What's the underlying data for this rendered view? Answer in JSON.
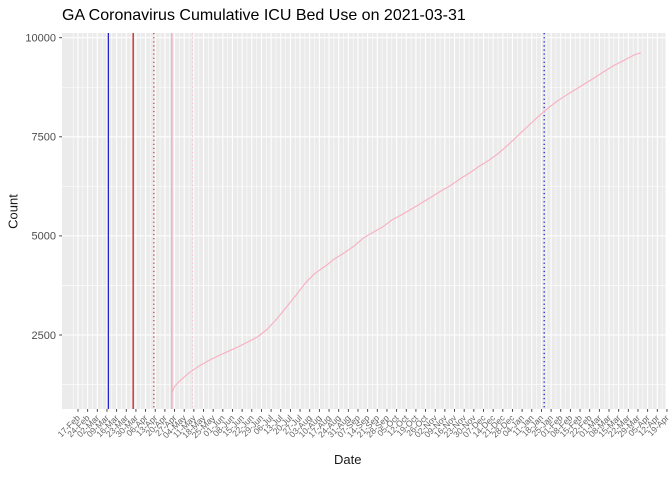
{
  "chart_data": {
    "type": "line",
    "title": "GA Coronavirus Cumulative ICU Bed Use on 2021-03-31",
    "xlabel": "Date",
    "ylabel": "Count",
    "legend": "none",
    "grid": true,
    "panel_bg": "#ebebeb",
    "grid_color": "#ffffff",
    "axis_text_color_y": "#4d4d4d",
    "axis_text_color_x": "#666666",
    "y_ticks": [
      2500,
      5000,
      7500,
      10000
    ],
    "y_minor_ticks": [
      1250,
      3750,
      6250,
      8750
    ],
    "ylim": [
      630,
      10120
    ],
    "x_ticks": [
      [
        "2020-02-17",
        "17-Feb"
      ],
      [
        "2020-02-24",
        "24-Feb"
      ],
      [
        "2020-03-02",
        "02-Mar"
      ],
      [
        "2020-03-09",
        "09-Mar"
      ],
      [
        "2020-03-16",
        "16-Mar"
      ],
      [
        "2020-03-23",
        "23-Mar"
      ],
      [
        "2020-03-30",
        "30-Mar"
      ],
      [
        "2020-04-06",
        "06-Apr"
      ],
      [
        "2020-04-13",
        "13-Apr"
      ],
      [
        "2020-04-20",
        "20-Apr"
      ],
      [
        "2020-04-27",
        "27-Apr"
      ],
      [
        "2020-05-04",
        "04-May"
      ],
      [
        "2020-05-11",
        "11-May"
      ],
      [
        "2020-05-18",
        "18-May"
      ],
      [
        "2020-05-25",
        "25-May"
      ],
      [
        "2020-06-01",
        "01-Jun"
      ],
      [
        "2020-06-08",
        "08-Jun"
      ],
      [
        "2020-06-15",
        "15-Jun"
      ],
      [
        "2020-06-22",
        "22-Jun"
      ],
      [
        "2020-06-29",
        "29-Jun"
      ],
      [
        "2020-07-06",
        "06-Jul"
      ],
      [
        "2020-07-13",
        "13-Jul"
      ],
      [
        "2020-07-20",
        "20-Jul"
      ],
      [
        "2020-07-27",
        "27-Jul"
      ],
      [
        "2020-08-03",
        "03-Aug"
      ],
      [
        "2020-08-10",
        "10-Aug"
      ],
      [
        "2020-08-17",
        "17-Aug"
      ],
      [
        "2020-08-24",
        "24-Aug"
      ],
      [
        "2020-08-31",
        "31-Aug"
      ],
      [
        "2020-09-07",
        "07-Sep"
      ],
      [
        "2020-09-14",
        "14-Sep"
      ],
      [
        "2020-09-21",
        "21-Sep"
      ],
      [
        "2020-09-28",
        "28-Sep"
      ],
      [
        "2020-10-05",
        "05-Oct"
      ],
      [
        "2020-10-12",
        "12-Oct"
      ],
      [
        "2020-10-19",
        "19-Oct"
      ],
      [
        "2020-10-26",
        "26-Oct"
      ],
      [
        "2020-11-02",
        "02-Nov"
      ],
      [
        "2020-11-09",
        "09-Nov"
      ],
      [
        "2020-11-16",
        "16-Nov"
      ],
      [
        "2020-11-23",
        "23-Nov"
      ],
      [
        "2020-11-30",
        "30-Nov"
      ],
      [
        "2020-12-07",
        "07-Dec"
      ],
      [
        "2020-12-14",
        "14-Dec"
      ],
      [
        "2020-12-21",
        "21-Dec"
      ],
      [
        "2020-12-28",
        "28-Dec"
      ],
      [
        "2021-01-04",
        "04-Jan"
      ],
      [
        "2021-01-11",
        "11-Jan"
      ],
      [
        "2021-01-18",
        "18-Jan"
      ],
      [
        "2021-01-25",
        "25-Jan"
      ],
      [
        "2021-02-01",
        "01-Feb"
      ],
      [
        "2021-02-08",
        "08-Feb"
      ],
      [
        "2021-02-15",
        "15-Feb"
      ],
      [
        "2021-02-22",
        "22-Feb"
      ],
      [
        "2021-03-01",
        "01-Mar"
      ],
      [
        "2021-03-08",
        "08-Mar"
      ],
      [
        "2021-03-15",
        "15-Mar"
      ],
      [
        "2021-03-22",
        "22-Mar"
      ],
      [
        "2021-03-29",
        "29-Mar"
      ],
      [
        "2021-04-05",
        "05-Apr"
      ],
      [
        "2021-04-12",
        "12-Apr"
      ],
      [
        "2021-04-19",
        "19-Apr"
      ]
    ],
    "vlines": [
      {
        "date": "2020-03-10",
        "color": "#2323c8",
        "style": "solid",
        "width": 1.3
      },
      {
        "date": "2020-03-28",
        "color": "#d01f1f",
        "style": "solid",
        "width": 1.3
      },
      {
        "date": "2020-04-12",
        "color": "#d01f1f",
        "style": "dotted",
        "width": 1.1
      },
      {
        "date": "2020-04-25",
        "color": "#f8b0c0",
        "style": "solid",
        "width": 1.6
      },
      {
        "date": "2020-05-10",
        "color": "#f8c0cc",
        "style": "dotted",
        "width": 1.1
      },
      {
        "date": "2021-01-20",
        "color": "#2323c8",
        "style": "dotted",
        "width": 1.3
      }
    ],
    "series": [
      {
        "name": "cumulative-icu-bed-use",
        "color": "#f8b0c0",
        "points": [
          [
            "2020-04-25",
            1040
          ],
          [
            "2020-04-27",
            1200
          ],
          [
            "2020-05-01",
            1350
          ],
          [
            "2020-05-08",
            1560
          ],
          [
            "2020-05-15",
            1720
          ],
          [
            "2020-05-22",
            1860
          ],
          [
            "2020-05-29",
            1980
          ],
          [
            "2020-06-05",
            2090
          ],
          [
            "2020-06-12",
            2200
          ],
          [
            "2020-06-19",
            2320
          ],
          [
            "2020-06-26",
            2450
          ],
          [
            "2020-07-03",
            2640
          ],
          [
            "2020-07-10",
            2900
          ],
          [
            "2020-07-17",
            3200
          ],
          [
            "2020-07-24",
            3500
          ],
          [
            "2020-07-31",
            3820
          ],
          [
            "2020-08-07",
            4060
          ],
          [
            "2020-08-14",
            4230
          ],
          [
            "2020-08-21",
            4420
          ],
          [
            "2020-08-28",
            4570
          ],
          [
            "2020-09-04",
            4740
          ],
          [
            "2020-09-11",
            4950
          ],
          [
            "2020-09-18",
            5090
          ],
          [
            "2020-09-25",
            5230
          ],
          [
            "2020-10-02",
            5410
          ],
          [
            "2020-10-09",
            5540
          ],
          [
            "2020-10-16",
            5680
          ],
          [
            "2020-10-23",
            5830
          ],
          [
            "2020-10-30",
            5980
          ],
          [
            "2020-11-06",
            6130
          ],
          [
            "2020-11-13",
            6270
          ],
          [
            "2020-11-20",
            6440
          ],
          [
            "2020-11-27",
            6590
          ],
          [
            "2020-12-04",
            6760
          ],
          [
            "2020-12-11",
            6910
          ],
          [
            "2020-12-18",
            7090
          ],
          [
            "2020-12-25",
            7300
          ],
          [
            "2021-01-01",
            7530
          ],
          [
            "2021-01-08",
            7760
          ],
          [
            "2021-01-15",
            7990
          ],
          [
            "2021-01-22",
            8200
          ],
          [
            "2021-01-29",
            8390
          ],
          [
            "2021-02-05",
            8550
          ],
          [
            "2021-02-12",
            8700
          ],
          [
            "2021-02-19",
            8850
          ],
          [
            "2021-02-26",
            9000
          ],
          [
            "2021-03-05",
            9160
          ],
          [
            "2021-03-12",
            9310
          ],
          [
            "2021-03-19",
            9430
          ],
          [
            "2021-03-26",
            9560
          ],
          [
            "2021-03-31",
            9620
          ]
        ]
      }
    ]
  }
}
